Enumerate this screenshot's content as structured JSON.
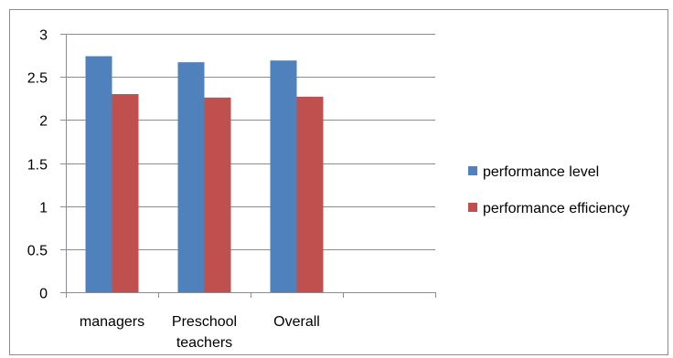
{
  "chart_data": {
    "type": "bar",
    "title": "",
    "xlabel": "",
    "ylabel": "",
    "categories": [
      [
        "managers"
      ],
      [
        "Preschool",
        "teachers"
      ],
      [
        "Overall"
      ],
      [
        ""
      ]
    ],
    "series": [
      {
        "name": "performance level",
        "color": "#4F81BD",
        "values": [
          2.74,
          2.67,
          2.69,
          null
        ]
      },
      {
        "name": "performance efficiency",
        "color": "#C0504D",
        "values": [
          2.3,
          2.26,
          2.27,
          null
        ]
      }
    ],
    "ylim": [
      0,
      3
    ],
    "yticks": [
      "0",
      "0.5",
      "1",
      "1.5",
      "2",
      "2.5",
      "3"
    ],
    "grid": true,
    "legend_position": "right"
  }
}
